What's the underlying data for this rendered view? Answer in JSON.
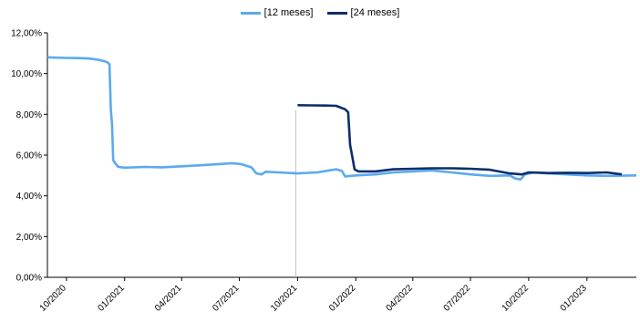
{
  "chart_data": {
    "type": "line",
    "title": "",
    "xlabel": "",
    "ylabel": "",
    "x_tick_labels": [
      "10/2020",
      "01/2021",
      "04/2021",
      "07/2021",
      "10/2021",
      "01/2022",
      "04/2022",
      "07/2022",
      "10/2022",
      "01/2023"
    ],
    "x_ticks": [
      "2020-10-01",
      "2021-01-01",
      "2021-04-01",
      "2021-07-01",
      "2021-10-01",
      "2022-01-01",
      "2022-04-01",
      "2022-07-01",
      "2022-10-01",
      "2023-01-01"
    ],
    "xlim": [
      "2020-09-01",
      "2023-03-20"
    ],
    "y_tick_labels": [
      "0,00%",
      "2,00%",
      "4,00%",
      "6,00%",
      "8,00%",
      "10,00%",
      "12,00%"
    ],
    "ylim": [
      0,
      12
    ],
    "grid": false,
    "legend_position": "top-center",
    "series": [
      {
        "name": "[12 meses]",
        "color": "#5aaaf0",
        "points": [
          [
            "2020-09-01",
            10.8
          ],
          [
            "2020-09-15",
            10.78
          ],
          [
            "2020-10-01",
            10.77
          ],
          [
            "2020-10-20",
            10.76
          ],
          [
            "2020-11-05",
            10.74
          ],
          [
            "2020-11-20",
            10.68
          ],
          [
            "2020-12-01",
            10.6
          ],
          [
            "2020-12-05",
            10.55
          ],
          [
            "2020-12-08",
            10.45
          ],
          [
            "2020-12-10",
            8.3
          ],
          [
            "2020-12-12",
            7.5
          ],
          [
            "2020-12-14",
            5.75
          ],
          [
            "2020-12-17",
            5.6
          ],
          [
            "2020-12-22",
            5.42
          ],
          [
            "2021-01-01",
            5.38
          ],
          [
            "2021-02-01",
            5.42
          ],
          [
            "2021-03-01",
            5.4
          ],
          [
            "2021-04-01",
            5.45
          ],
          [
            "2021-05-01",
            5.5
          ],
          [
            "2021-06-01",
            5.56
          ],
          [
            "2021-06-20",
            5.6
          ],
          [
            "2021-07-05",
            5.55
          ],
          [
            "2021-07-20",
            5.4
          ],
          [
            "2021-07-28",
            5.1
          ],
          [
            "2021-08-05",
            5.05
          ],
          [
            "2021-08-12",
            5.18
          ],
          [
            "2021-09-01",
            5.15
          ],
          [
            "2021-10-01",
            5.1
          ],
          [
            "2021-11-01",
            5.15
          ],
          [
            "2021-11-20",
            5.25
          ],
          [
            "2021-12-01",
            5.3
          ],
          [
            "2021-12-10",
            5.22
          ],
          [
            "2021-12-15",
            4.95
          ],
          [
            "2022-01-01",
            5.0
          ],
          [
            "2022-02-01",
            5.05
          ],
          [
            "2022-03-01",
            5.15
          ],
          [
            "2022-04-01",
            5.2
          ],
          [
            "2022-05-01",
            5.25
          ],
          [
            "2022-06-01",
            5.15
          ],
          [
            "2022-07-01",
            5.05
          ],
          [
            "2022-08-01",
            4.98
          ],
          [
            "2022-09-01",
            5.0
          ],
          [
            "2022-09-10",
            4.85
          ],
          [
            "2022-09-18",
            4.8
          ],
          [
            "2022-09-25",
            5.05
          ],
          [
            "2022-10-10",
            5.15
          ],
          [
            "2022-11-01",
            5.1
          ],
          [
            "2022-12-01",
            5.05
          ],
          [
            "2023-01-01",
            5.0
          ],
          [
            "2023-02-01",
            4.98
          ],
          [
            "2023-03-20",
            5.0
          ]
        ]
      },
      {
        "name": "[24 meses]",
        "color": "#0b2e6b",
        "points": [
          [
            "2021-10-01",
            8.45
          ],
          [
            "2021-10-20",
            8.44
          ],
          [
            "2021-11-15",
            8.43
          ],
          [
            "2021-12-01",
            8.42
          ],
          [
            "2021-12-15",
            8.25
          ],
          [
            "2021-12-20",
            8.1
          ],
          [
            "2021-12-23",
            6.5
          ],
          [
            "2021-12-26",
            6.0
          ],
          [
            "2021-12-30",
            5.3
          ],
          [
            "2022-01-05",
            5.2
          ],
          [
            "2022-02-01",
            5.2
          ],
          [
            "2022-03-01",
            5.3
          ],
          [
            "2022-04-01",
            5.33
          ],
          [
            "2022-05-01",
            5.35
          ],
          [
            "2022-06-01",
            5.35
          ],
          [
            "2022-07-01",
            5.33
          ],
          [
            "2022-08-01",
            5.28
          ],
          [
            "2022-09-01",
            5.1
          ],
          [
            "2022-09-20",
            5.05
          ],
          [
            "2022-10-01",
            5.15
          ],
          [
            "2022-11-01",
            5.12
          ],
          [
            "2022-12-01",
            5.13
          ],
          [
            "2023-01-01",
            5.12
          ],
          [
            "2023-02-01",
            5.15
          ],
          [
            "2023-02-25",
            5.05
          ]
        ]
      }
    ]
  }
}
